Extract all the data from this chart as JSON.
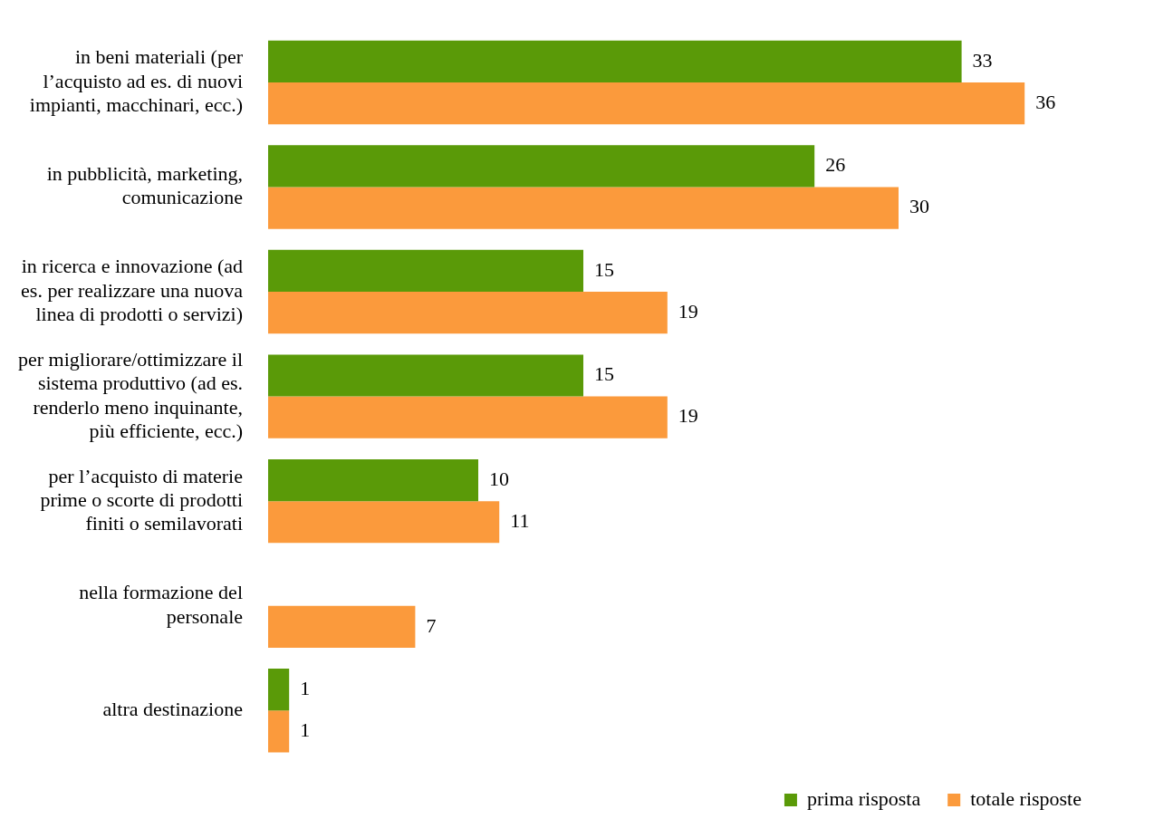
{
  "chart_data": {
    "type": "bar",
    "orientation": "horizontal",
    "categories": [
      "in beni materiali (per l’acquisto ad es. di nuovi impianti, macchinari, ecc.)",
      "in pubblicità, marketing, comunicazione",
      "in ricerca e innovazione (ad es. per realizzare una nuova linea di prodotti o servizi)",
      "per migliorare/ottimizzare il sistema produttivo (ad es. renderlo meno inquinante, più efficiente, ecc.)",
      "per l’acquisto di materie prime o scorte di prodotti finiti o semilavorati",
      "nella formazione del personale",
      "altra destinazione"
    ],
    "series": [
      {
        "name": "prima risposta",
        "color": "#5a9a08",
        "values": [
          33,
          26,
          15,
          15,
          10,
          null,
          1
        ]
      },
      {
        "name": "totale risposte",
        "color": "#fb9a3c",
        "values": [
          36,
          30,
          19,
          19,
          11,
          7,
          1
        ]
      }
    ],
    "data_labels": true,
    "legend": "bottom right",
    "tick_labels": "y"
  }
}
